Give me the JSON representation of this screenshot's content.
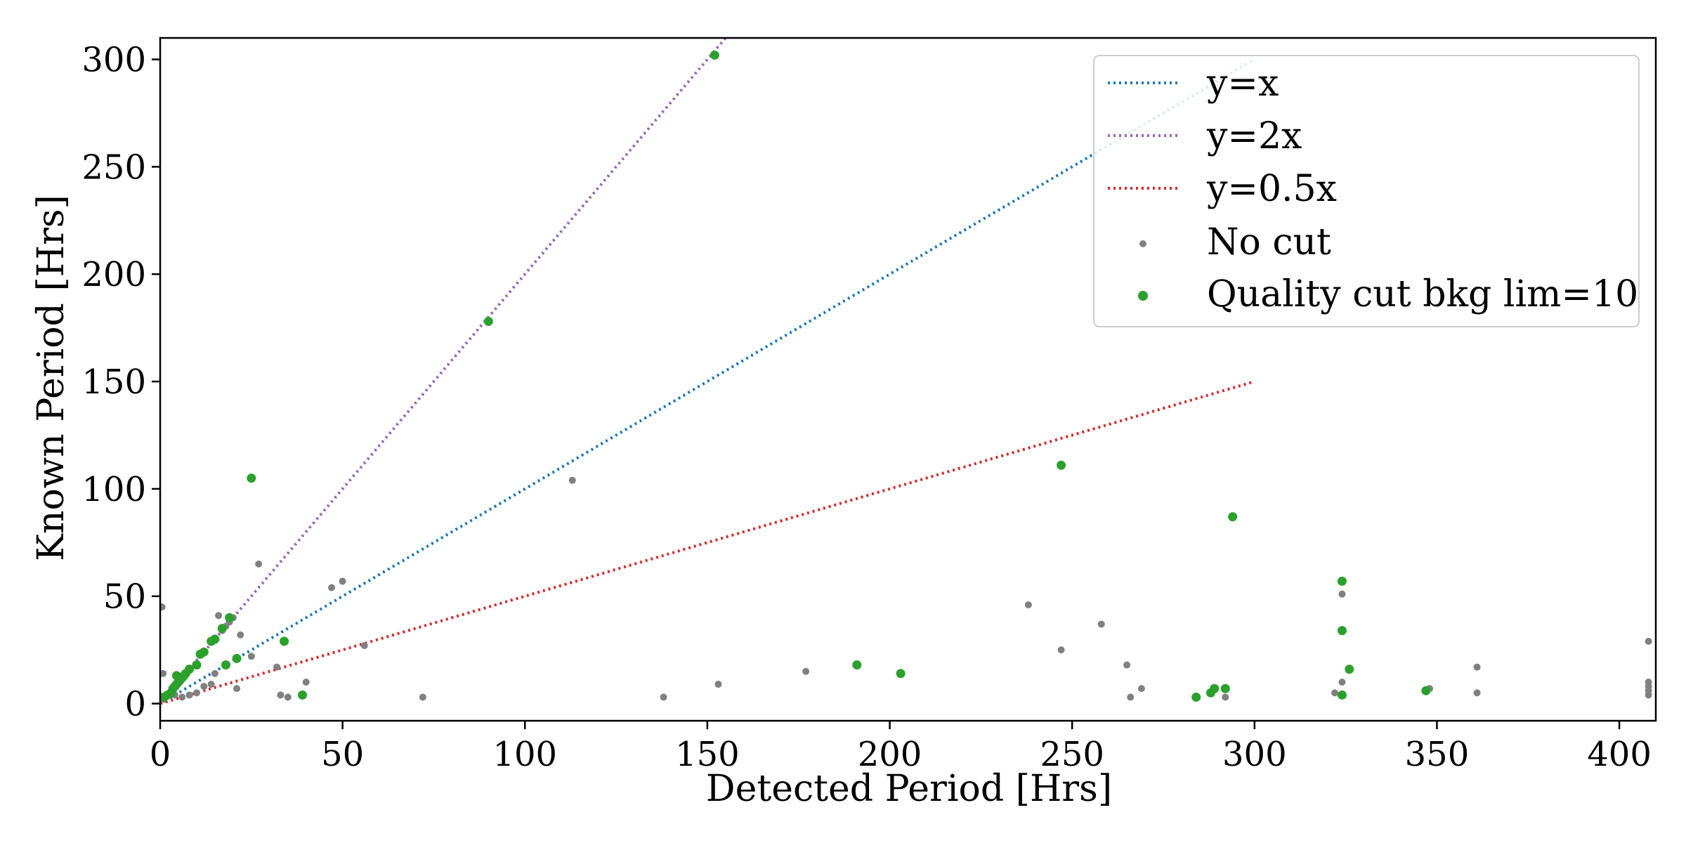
{
  "chart_data": {
    "type": "scatter",
    "title": "",
    "xlabel": "Detected Period [Hrs]",
    "ylabel": "Known Period [Hrs]",
    "xlim": [
      0,
      410
    ],
    "ylim": [
      -8,
      310
    ],
    "xticks": [
      0,
      50,
      100,
      150,
      200,
      250,
      300,
      350,
      400
    ],
    "yticks": [
      0,
      50,
      100,
      150,
      200,
      250,
      300
    ],
    "grid": false,
    "legend_position": "top-right",
    "lines": [
      {
        "name": "y=x",
        "slope": 1,
        "x_range": [
          0,
          300
        ],
        "color": "#1f77b4",
        "style": "dotted"
      },
      {
        "name": "y=2x",
        "slope": 2,
        "x_range": [
          0,
          155
        ],
        "color": "#9467bd",
        "style": "dotted"
      },
      {
        "name": "y=0.5x",
        "slope": 0.5,
        "x_range": [
          0,
          300
        ],
        "color": "#d62728",
        "style": "dotted"
      }
    ],
    "series": [
      {
        "name": "No cut",
        "color": "#808080",
        "points": [
          [
            0.5,
            45
          ],
          [
            0.8,
            14
          ],
          [
            1,
            2
          ],
          [
            1.5,
            3
          ],
          [
            2,
            4
          ],
          [
            2.5,
            5
          ],
          [
            3,
            6
          ],
          [
            3.5,
            7
          ],
          [
            4,
            8
          ],
          [
            4.5,
            9
          ],
          [
            5,
            10
          ],
          [
            6,
            12
          ],
          [
            7,
            14
          ],
          [
            4,
            4
          ],
          [
            6,
            3
          ],
          [
            8,
            4
          ],
          [
            10,
            5
          ],
          [
            12,
            8
          ],
          [
            14,
            9
          ],
          [
            15,
            14
          ],
          [
            16,
            41
          ],
          [
            17,
            34
          ],
          [
            18,
            36
          ],
          [
            19,
            38
          ],
          [
            20,
            40
          ],
          [
            21,
            7
          ],
          [
            22,
            32
          ],
          [
            25,
            22
          ],
          [
            27,
            65
          ],
          [
            32,
            17
          ],
          [
            33,
            4
          ],
          [
            35,
            3
          ],
          [
            40,
            10
          ],
          [
            47,
            54
          ],
          [
            50,
            57
          ],
          [
            56,
            27
          ],
          [
            72,
            3
          ],
          [
            113,
            104
          ],
          [
            138,
            3
          ],
          [
            153,
            9
          ],
          [
            177,
            15
          ],
          [
            238,
            46
          ],
          [
            247,
            25
          ],
          [
            258,
            37
          ],
          [
            265,
            18
          ],
          [
            266,
            3
          ],
          [
            269,
            7
          ],
          [
            284,
            3
          ],
          [
            292,
            3
          ],
          [
            322,
            5
          ],
          [
            324,
            51
          ],
          [
            324,
            10
          ],
          [
            348,
            7
          ],
          [
            361,
            17
          ],
          [
            361,
            5
          ],
          [
            408,
            29
          ],
          [
            408,
            10
          ],
          [
            408,
            8
          ],
          [
            408,
            6
          ],
          [
            408,
            4
          ]
        ]
      },
      {
        "name": "Quality cut bkg lim=10",
        "color": "#2ca02c",
        "points": [
          [
            1,
            3
          ],
          [
            2,
            4
          ],
          [
            3,
            5
          ],
          [
            3.5,
            7
          ],
          [
            4,
            8
          ],
          [
            4.5,
            9
          ],
          [
            5,
            10
          ],
          [
            5.5,
            11
          ],
          [
            6,
            12
          ],
          [
            6.5,
            13
          ],
          [
            7,
            14
          ],
          [
            8,
            16
          ],
          [
            4.5,
            13
          ],
          [
            10,
            18
          ],
          [
            11,
            23
          ],
          [
            12,
            24
          ],
          [
            14,
            29
          ],
          [
            15,
            30
          ],
          [
            17,
            35
          ],
          [
            19,
            40
          ],
          [
            18,
            18
          ],
          [
            21,
            21
          ],
          [
            25,
            105
          ],
          [
            34,
            29
          ],
          [
            39,
            4
          ],
          [
            90,
            178
          ],
          [
            152,
            302
          ],
          [
            191,
            18
          ],
          [
            203,
            14
          ],
          [
            247,
            111
          ],
          [
            284,
            3
          ],
          [
            288,
            5
          ],
          [
            289,
            7
          ],
          [
            292,
            7
          ],
          [
            294,
            87
          ],
          [
            324,
            57
          ],
          [
            324,
            34
          ],
          [
            324,
            4
          ],
          [
            326,
            16
          ],
          [
            347,
            6
          ]
        ]
      }
    ]
  }
}
